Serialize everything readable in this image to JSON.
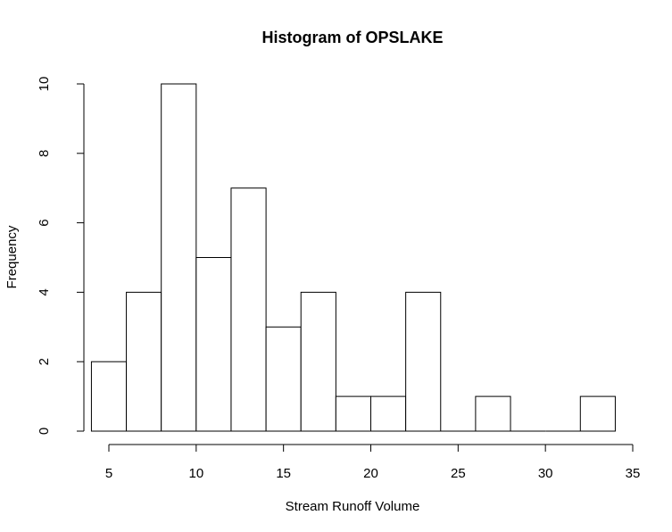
{
  "chart_data": {
    "type": "bar",
    "title": "Histogram of OPSLAKE",
    "xlabel": "Stream Runoff Volume",
    "ylabel": "Frequency",
    "bins": [
      {
        "from": 4,
        "to": 6,
        "count": 2
      },
      {
        "from": 6,
        "to": 8,
        "count": 4
      },
      {
        "from": 8,
        "to": 10,
        "count": 10
      },
      {
        "from": 10,
        "to": 12,
        "count": 5
      },
      {
        "from": 12,
        "to": 14,
        "count": 7
      },
      {
        "from": 14,
        "to": 16,
        "count": 3
      },
      {
        "from": 16,
        "to": 18,
        "count": 4
      },
      {
        "from": 18,
        "to": 20,
        "count": 1
      },
      {
        "from": 20,
        "to": 22,
        "count": 1
      },
      {
        "from": 22,
        "to": 24,
        "count": 4
      },
      {
        "from": 24,
        "to": 26,
        "count": 0
      },
      {
        "from": 26,
        "to": 28,
        "count": 1
      },
      {
        "from": 28,
        "to": 30,
        "count": 0
      },
      {
        "from": 30,
        "to": 32,
        "count": 0
      },
      {
        "from": 32,
        "to": 34,
        "count": 1
      }
    ],
    "xlim": [
      5,
      35
    ],
    "ylim": [
      0,
      10
    ],
    "x_ticks": [
      "5",
      "10",
      "15",
      "20",
      "25",
      "30",
      "35"
    ],
    "y_ticks": [
      "0",
      "2",
      "4",
      "6",
      "8",
      "10"
    ],
    "grid": false,
    "legend": "none",
    "colors": {
      "bar_fill": "#ffffff",
      "bar_stroke": "#000000"
    }
  }
}
